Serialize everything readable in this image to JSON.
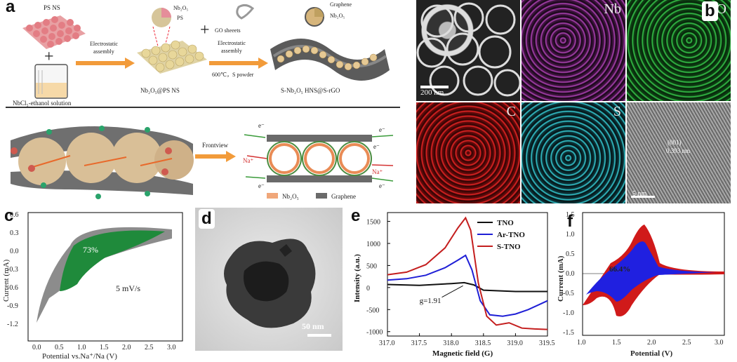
{
  "figure": {
    "panel_labels": {
      "a": "a",
      "b": "b",
      "c": "c",
      "d": "d",
      "e": "e",
      "f": "f"
    }
  },
  "panel_a": {
    "ps_ns": "PS NS",
    "nb2o5_top": "Nb₂O₅",
    "ps": "PS",
    "electrostatic_1": "Electrostatic",
    "assembly_1": "assembly",
    "nbcl5": "NbCl₅-ethanol solution",
    "nb2o5_ps_ns": "Nb₂O₅@PS NS",
    "go_sheets": "GO sheeets",
    "electrostatic_2": "Electrostatic",
    "assembly_2": "assembly",
    "conditions": "600℃，S powder",
    "graphene_top": "Graphene",
    "nb2o5_right": "Nb₂O₅",
    "product": "S-Nb₂O₅ HNS@S-rGO",
    "frontview": "Frontview",
    "e_minus": "e⁻",
    "na_plus": "Na⁺",
    "legend_nb2o5": "Nb₂O₅",
    "legend_graphene": "Graphene"
  },
  "panel_b": {
    "tiles": [
      "",
      "Nb",
      "O",
      "C",
      "S",
      ""
    ],
    "scale_200nm": "200 nm",
    "lattice_label": "(001)",
    "lattice_value": "0.393 nm",
    "scale_5nm": "5 nm"
  },
  "panel_c": {
    "ylabel": "Current (mA)",
    "xlabel": "Potential vs.Na⁺/Na (V)",
    "y_ticks": [
      "0.6",
      "0.3",
      "0.0",
      "-0.3",
      "-0.6",
      "-0.9",
      "-1.2"
    ],
    "x_ticks": [
      "0.0",
      "0.5",
      "1.0",
      "1.5",
      "2.0",
      "2.5",
      "3.0"
    ],
    "percent": "73%",
    "scan_rate": "5 mV/s"
  },
  "panel_d": {
    "scale": "50 nm"
  },
  "panel_f": {
    "ylabel": "Current (mA)",
    "xlabel": "Potential (V)",
    "y_ticks": [
      "1.5",
      "1.0",
      "0.5",
      "0.0",
      "-0.5",
      "-1.0",
      "-1.5"
    ],
    "x_ticks": [
      "1.0",
      "1.5",
      "2.0",
      "2.5",
      "3.0"
    ],
    "percent": "66.4%"
  },
  "chart_data": [
    {
      "type": "line",
      "panel": "e",
      "xlabel": "Magnetic field (G)",
      "ylabel": "Intensity (a.u.)",
      "xlim": [
        317.0,
        319.5
      ],
      "ylim": [
        -1100,
        1700
      ],
      "x_ticks": [
        "317.0",
        "317.5",
        "318.0",
        "318.5",
        "319.0",
        "319.5"
      ],
      "y_ticks": [
        "1500",
        "1000",
        "500",
        "0",
        "-500",
        "-1000"
      ],
      "annotation": "g=1.91",
      "legend_position": "top-right",
      "series": [
        {
          "name": "TNO",
          "color": "#111111",
          "x": [
            317.0,
            317.5,
            318.0,
            318.2,
            318.35,
            318.5,
            319.0,
            319.5
          ],
          "y": [
            70,
            50,
            90,
            110,
            60,
            -60,
            -90,
            -90
          ]
        },
        {
          "name": "Ar-TNO",
          "color": "#1f1fd6",
          "x": [
            317.0,
            317.3,
            317.6,
            317.9,
            318.1,
            318.22,
            318.32,
            318.45,
            318.6,
            318.8,
            319.0,
            319.2,
            319.5
          ],
          "y": [
            170,
            200,
            280,
            450,
            620,
            730,
            400,
            -300,
            -620,
            -650,
            -600,
            -500,
            -300
          ]
        },
        {
          "name": "S-TNO",
          "color": "#c41e1e",
          "x": [
            317.0,
            317.3,
            317.6,
            317.9,
            318.1,
            318.22,
            318.3,
            318.42,
            318.55,
            318.7,
            318.9,
            319.1,
            319.3,
            319.5
          ],
          "y": [
            290,
            350,
            520,
            900,
            1350,
            1580,
            1300,
            100,
            -650,
            -850,
            -800,
            -920,
            -940,
            -950
          ]
        }
      ]
    }
  ]
}
